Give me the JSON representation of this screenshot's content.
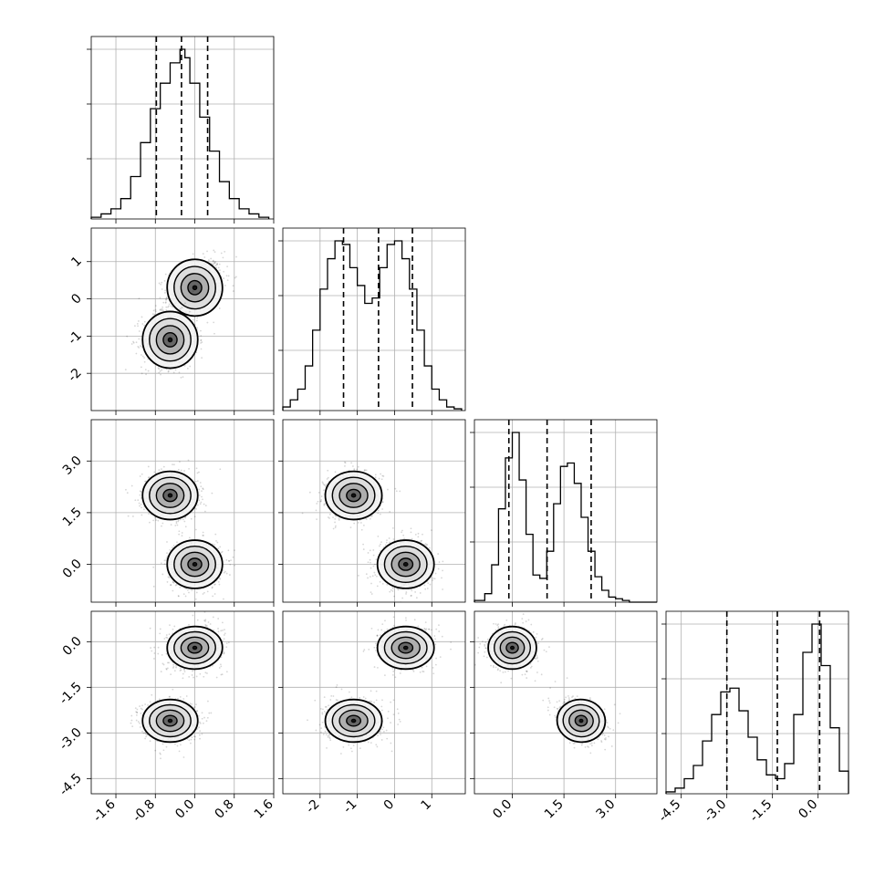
{
  "chart_data": {
    "type": "scatter",
    "plot_kind": "corner",
    "grid": true,
    "params": [
      {
        "range": [
          -2.1,
          1.6
        ],
        "xticks": [
          "-1.6",
          "-0.8",
          "0.0",
          "0.8",
          "1.6"
        ],
        "yticks": []
      },
      {
        "range": [
          -3.0,
          1.9
        ],
        "xticks": [
          "-2",
          "-1",
          "0",
          "1"
        ],
        "yticks": [
          "-2",
          "-1",
          "0",
          "1"
        ]
      },
      {
        "range": [
          -1.1,
          4.2
        ],
        "xticks": [
          "0.0",
          "1.5",
          "3.0"
        ],
        "yticks": [
          "0.0",
          "1.5",
          "3.0"
        ]
      },
      {
        "range": [
          -5.0,
          1.0
        ],
        "xticks": [
          "-4.5",
          "-3.0",
          "-1.5",
          "0.0"
        ],
        "yticks": [
          "-4.5",
          "-3.0",
          "-1.5",
          "0.0"
        ]
      }
    ],
    "quantiles": [
      [
        -0.78,
        -0.27,
        0.26
      ],
      [
        -1.37,
        -0.43,
        0.48
      ],
      [
        -0.1,
        1.01,
        2.29
      ],
      [
        -3.0,
        -1.34,
        0.05
      ]
    ],
    "histograms": [
      {
        "bin_edges": [
          -2.1,
          -1.9,
          -1.7,
          -1.5,
          -1.3,
          -1.1,
          -0.9,
          -0.7,
          -0.5,
          -0.3,
          -0.2,
          -0.1,
          0.1,
          0.3,
          0.5,
          0.7,
          0.9,
          1.1,
          1.3,
          1.5
        ],
        "counts": [
          1,
          3,
          6,
          12,
          25,
          45,
          65,
          80,
          92,
          100,
          95,
          80,
          60,
          40,
          22,
          12,
          6,
          3,
          1
        ]
      },
      {
        "bin_edges": [
          -3.0,
          -2.8,
          -2.6,
          -2.4,
          -2.2,
          -2.0,
          -1.8,
          -1.6,
          -1.4,
          -1.2,
          -1.0,
          -0.8,
          -0.6,
          -0.4,
          -0.2,
          0.0,
          0.2,
          0.4,
          0.6,
          0.8,
          1.0,
          1.2,
          1.4,
          1.6,
          1.8
        ],
        "counts": [
          2,
          6,
          12,
          25,
          45,
          68,
          85,
          95,
          93,
          80,
          70,
          60,
          63,
          80,
          93,
          95,
          85,
          68,
          45,
          25,
          12,
          6,
          2,
          1
        ]
      },
      {
        "bin_edges": [
          -1.1,
          -0.8,
          -0.6,
          -0.4,
          -0.2,
          0.0,
          0.2,
          0.4,
          0.6,
          0.8,
          1.0,
          1.2,
          1.4,
          1.6,
          1.8,
          2.0,
          2.2,
          2.4,
          2.6,
          2.8,
          3.0,
          3.2,
          3.4,
          4.2
        ],
        "counts": [
          1,
          5,
          22,
          55,
          85,
          100,
          72,
          40,
          16,
          14,
          30,
          58,
          80,
          82,
          70,
          50,
          30,
          15,
          7,
          3,
          2,
          1,
          0
        ]
      },
      {
        "bin_edges": [
          -5.0,
          -4.7,
          -4.4,
          -4.1,
          -3.8,
          -3.5,
          -3.2,
          -2.9,
          -2.6,
          -2.3,
          -2.0,
          -1.7,
          -1.4,
          -1.1,
          -0.8,
          -0.5,
          -0.2,
          0.1,
          0.4,
          0.7,
          1.0
        ],
        "counts": [
          1,
          3,
          8,
          15,
          28,
          42,
          54,
          56,
          44,
          30,
          18,
          10,
          8,
          16,
          42,
          75,
          90,
          68,
          35,
          12
        ]
      }
    ],
    "components": [
      {
        "mean": [
          0.0,
          0.3,
          0.0,
          -0.2
        ],
        "sd": [
          0.28,
          0.38,
          0.35,
          0.35
        ],
        "corr": {
          "0-1": 0.3,
          "1-2": 0.0,
          "2-3": 0.0,
          "0-2": 0.0,
          "0-3": 0.1,
          "1-3": 0.0
        }
      },
      {
        "mean": [
          -0.5,
          -1.1,
          2.0,
          -2.6
        ],
        "sd": [
          0.28,
          0.38,
          0.35,
          0.35
        ],
        "corr": {
          "0-1": 0.0,
          "1-2": 0.0,
          "2-3": -0.3,
          "0-2": 0.0,
          "0-3": 0.0,
          "1-3": 0.0
        }
      }
    ]
  }
}
